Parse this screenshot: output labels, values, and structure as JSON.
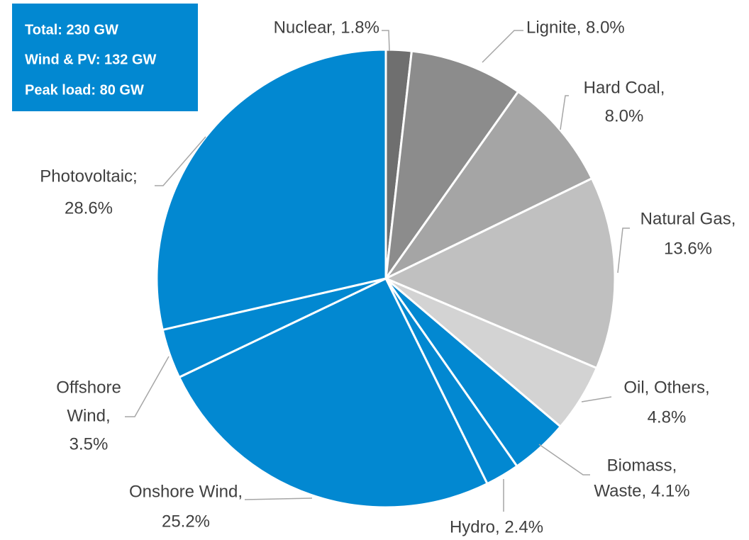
{
  "chart_data": {
    "type": "pie",
    "values": [
      1.8,
      8.0,
      8.0,
      13.6,
      4.8,
      4.1,
      2.4,
      25.2,
      3.5,
      28.6
    ],
    "value_labels": [
      [
        "Nuclear, 1.8%"
      ],
      [
        "Lignite, 8.0%"
      ],
      [
        "Hard Coal,",
        "8.0%"
      ],
      [
        "Natural Gas,",
        "13.6%"
      ],
      [
        "Oil, Others,",
        "4.8%"
      ],
      [
        "Biomass,",
        "Waste, 4.1%"
      ],
      [
        "Hydro, 2.4%"
      ],
      [
        "Onshore Wind,",
        "25.2%"
      ],
      [
        "Offshore",
        "Wind,",
        "3.5%"
      ],
      [
        "Photovoltaic;",
        "28.6%"
      ]
    ],
    "colors": [
      "#6f6f6f",
      "#8c8c8c",
      "#a5a5a5",
      "#c0c0c0",
      "#d3d3d3",
      "#0288d1",
      "#0288d1",
      "#0288d1",
      "#0288d1",
      "#0288d1"
    ],
    "annotations": [
      "Total: 230 GW",
      "Wind & PV: 132 GW",
      "Peak load: 80 GW"
    ]
  }
}
